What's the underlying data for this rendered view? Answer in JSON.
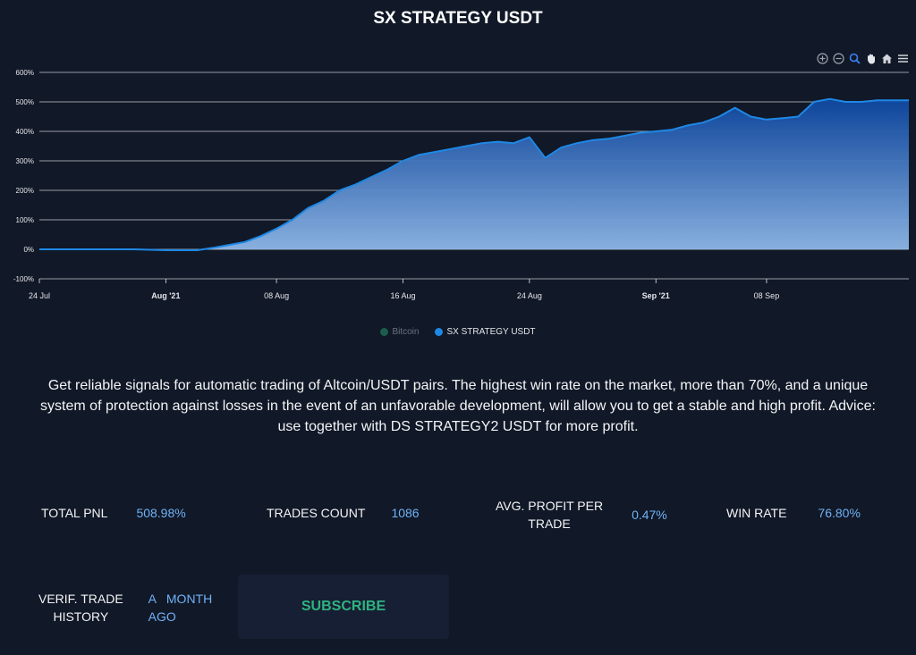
{
  "page_title": "SX STRATEGY USDT",
  "toolbar": {
    "icons": [
      "zoom-in-icon",
      "zoom-out-icon",
      "selection-zoom-icon",
      "pan-icon",
      "home-icon",
      "menu-icon"
    ]
  },
  "colors": {
    "background": "#111827",
    "series": "#1e88e5",
    "bitcoin": "#1b5e4a",
    "value": "#6fb2f5",
    "subscribe": "#2fb380"
  },
  "legend": [
    {
      "name": "Bitcoin",
      "color": "#1b5e4a",
      "active": false
    },
    {
      "name": "SX STRATEGY USDT",
      "color": "#1e88e5",
      "active": true
    }
  ],
  "chart_data": {
    "type": "area",
    "ylim": [
      -100,
      600
    ],
    "y_ticks": [
      "600%",
      "500%",
      "400%",
      "300%",
      "200%",
      "100%",
      "0%",
      "-100%"
    ],
    "x_ticks": [
      {
        "label": "24 Jul",
        "bold": false
      },
      {
        "label": "Aug '21",
        "bold": true
      },
      {
        "label": "08 Aug",
        "bold": false
      },
      {
        "label": "16 Aug",
        "bold": false
      },
      {
        "label": "24 Aug",
        "bold": false
      },
      {
        "label": "Sep '21",
        "bold": true
      },
      {
        "label": "08 Sep",
        "bold": false
      }
    ],
    "series": [
      {
        "name": "SX STRATEGY USDT",
        "x": [
          "2021-07-24",
          "2021-07-27",
          "2021-07-30",
          "2021-08-01",
          "2021-08-03",
          "2021-08-04",
          "2021-08-05",
          "2021-08-06",
          "2021-08-07",
          "2021-08-08",
          "2021-08-09",
          "2021-08-10",
          "2021-08-11",
          "2021-08-12",
          "2021-08-13",
          "2021-08-14",
          "2021-08-15",
          "2021-08-16",
          "2021-08-17",
          "2021-08-18",
          "2021-08-19",
          "2021-08-20",
          "2021-08-21",
          "2021-08-22",
          "2021-08-23",
          "2021-08-24",
          "2021-08-25",
          "2021-08-26",
          "2021-08-27",
          "2021-08-28",
          "2021-08-29",
          "2021-08-30",
          "2021-08-31",
          "2021-09-01",
          "2021-09-02",
          "2021-09-03",
          "2021-09-04",
          "2021-09-05",
          "2021-09-06",
          "2021-09-07",
          "2021-09-08",
          "2021-09-09",
          "2021-09-10",
          "2021-09-11",
          "2021-09-12",
          "2021-09-13",
          "2021-09-14",
          "2021-09-15",
          "2021-09-16",
          "2021-09-17"
        ],
        "values": [
          0,
          0,
          0,
          -3,
          -3,
          5,
          15,
          25,
          45,
          70,
          100,
          140,
          165,
          200,
          220,
          245,
          270,
          300,
          320,
          330,
          340,
          350,
          360,
          365,
          360,
          380,
          310,
          345,
          360,
          370,
          375,
          385,
          395,
          400,
          405,
          420,
          430,
          450,
          480,
          450,
          440,
          445,
          450,
          500,
          510,
          500,
          500,
          505,
          505,
          505
        ]
      }
    ]
  },
  "description": "Get reliable signals for automatic trading of Altcoin/USDT pairs. The highest win rate on the market, more than 70%, and a unique system of protection against losses in the event of an unfavorable development, will allow you to get a stable and high profit. Advice: use together with DS STRATEGY2 USDT for more profit.",
  "stats": {
    "total_pnl": {
      "label": "TOTAL PNL",
      "value": "508.98%"
    },
    "trades_count": {
      "label": "TRADES COUNT",
      "value": "1086"
    },
    "avg_profit": {
      "label_line1": "AVG. PROFIT PER",
      "label_line2": "TRADE",
      "value": "0.47%"
    },
    "win_rate": {
      "label": "WIN RATE",
      "value": "76.80%"
    },
    "verif_history": {
      "label_line1": "VERIF. TRADE",
      "label_line2": "HISTORY",
      "value_line1": "A   MONTH",
      "value_line2": "AGO"
    }
  },
  "subscribe_label": "SUBSCRIBE"
}
